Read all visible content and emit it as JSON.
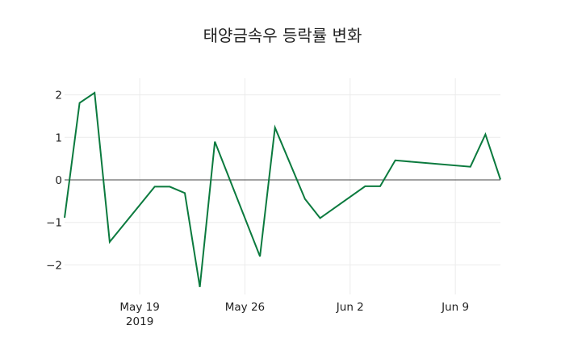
{
  "chart_data": {
    "type": "line",
    "title": "태양금속우 등락률 변화",
    "xlabel": "",
    "ylabel": "",
    "line_color": "#0b7a3e",
    "grid": true,
    "zero_line": true,
    "ylim": [
      -2.6,
      2.35
    ],
    "yticks": [
      2,
      1,
      0,
      -1,
      -2
    ],
    "ytick_labels": [
      "2",
      "1",
      "0",
      "−1",
      "−2"
    ],
    "xticks": [
      {
        "date": "2019-05-19",
        "label": "May 19",
        "sublabel": "2019"
      },
      {
        "date": "2019-05-26",
        "label": "May 26",
        "sublabel": ""
      },
      {
        "date": "2019-06-02",
        "label": "Jun 2",
        "sublabel": ""
      },
      {
        "date": "2019-06-09",
        "label": "Jun 9",
        "sublabel": ""
      }
    ],
    "x": [
      "2019-05-14",
      "2019-05-15",
      "2019-05-16",
      "2019-05-17",
      "2019-05-20",
      "2019-05-21",
      "2019-05-22",
      "2019-05-23",
      "2019-05-24",
      "2019-05-27",
      "2019-05-28",
      "2019-05-30",
      "2019-05-31",
      "2019-06-03",
      "2019-06-04",
      "2019-06-05",
      "2019-06-10",
      "2019-06-11",
      "2019-06-12"
    ],
    "values": [
      -0.89,
      1.81,
      2.05,
      -1.46,
      -0.16,
      -0.16,
      -0.31,
      -2.52,
      0.9,
      -1.8,
      1.23,
      -0.45,
      -0.9,
      -0.15,
      -0.15,
      0.46,
      0.31,
      1.07,
      0.01
    ],
    "xrange": [
      "2019-05-14",
      "2019-06-12"
    ],
    "legend": null
  }
}
